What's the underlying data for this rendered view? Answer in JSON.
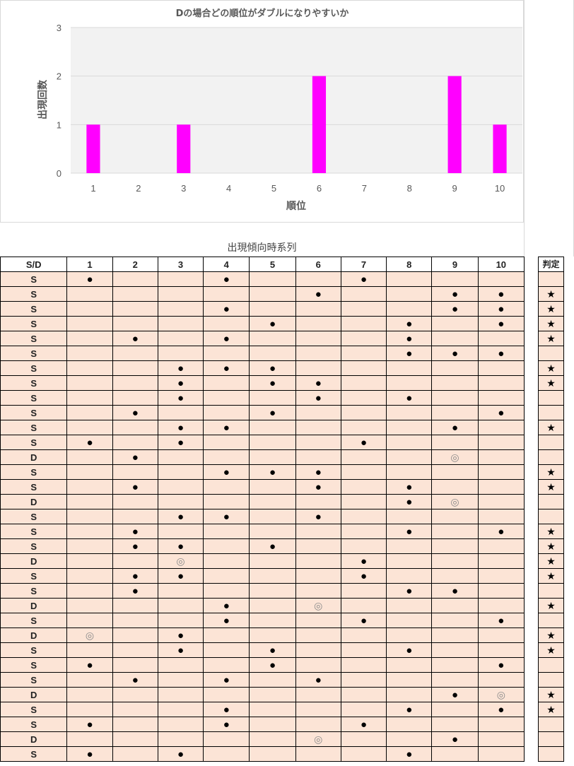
{
  "chart_data": {
    "type": "bar",
    "title": "Dの場合どの順位がダブルになりやすいか",
    "xlabel": "順位",
    "ylabel": "出現回数",
    "categories": [
      "1",
      "2",
      "3",
      "4",
      "5",
      "6",
      "7",
      "8",
      "9",
      "10"
    ],
    "values": [
      1,
      0,
      1,
      0,
      0,
      2,
      0,
      0,
      2,
      1
    ],
    "ylim": [
      0,
      3
    ],
    "yticks": [
      "0",
      "1",
      "2",
      "3"
    ],
    "bar_color": "#ff00ff",
    "plot_bg": "#f2f2f2",
    "grid": true,
    "legend": "none"
  },
  "table": {
    "title": "出現傾向時系列",
    "headers": [
      "S/D",
      "1",
      "2",
      "3",
      "4",
      "5",
      "6",
      "7",
      "8",
      "9",
      "10"
    ],
    "judge_header": "判定",
    "row_color": "#fce4d6",
    "dot_symbol": "●",
    "double_symbol": "◎",
    "star_symbol": "★",
    "rows": [
      {
        "sd": "S",
        "marks": {
          "1": "●",
          "4": "●",
          "7": "●"
        },
        "judge": ""
      },
      {
        "sd": "S",
        "marks": {
          "6": "●",
          "9": "●",
          "10": "●"
        },
        "judge": "★"
      },
      {
        "sd": "S",
        "marks": {
          "4": "●",
          "9": "●",
          "10": "●"
        },
        "judge": "★"
      },
      {
        "sd": "S",
        "marks": {
          "5": "●",
          "8": "●",
          "10": "●"
        },
        "judge": "★"
      },
      {
        "sd": "S",
        "marks": {
          "2": "●",
          "4": "●",
          "8": "●"
        },
        "judge": "★"
      },
      {
        "sd": "S",
        "marks": {
          "8": "●",
          "9": "●",
          "10": "●"
        },
        "judge": ""
      },
      {
        "sd": "S",
        "marks": {
          "3": "●",
          "4": "●",
          "5": "●"
        },
        "judge": "★"
      },
      {
        "sd": "S",
        "marks": {
          "3": "●",
          "5": "●",
          "6": "●"
        },
        "judge": "★"
      },
      {
        "sd": "S",
        "marks": {
          "3": "●",
          "6": "●",
          "8": "●"
        },
        "judge": ""
      },
      {
        "sd": "S",
        "marks": {
          "2": "●",
          "5": "●",
          "10": "●"
        },
        "judge": ""
      },
      {
        "sd": "S",
        "marks": {
          "3": "●",
          "4": "●",
          "9": "●"
        },
        "judge": "★"
      },
      {
        "sd": "S",
        "marks": {
          "1": "●",
          "3": "●",
          "7": "●"
        },
        "judge": ""
      },
      {
        "sd": "D",
        "marks": {
          "2": "●",
          "9": "◎"
        },
        "judge": ""
      },
      {
        "sd": "S",
        "marks": {
          "4": "●",
          "5": "●",
          "6": "●"
        },
        "judge": "★"
      },
      {
        "sd": "S",
        "marks": {
          "2": "●",
          "6": "●",
          "8": "●"
        },
        "judge": "★"
      },
      {
        "sd": "D",
        "marks": {
          "8": "●",
          "9": "◎"
        },
        "judge": ""
      },
      {
        "sd": "S",
        "marks": {
          "3": "●",
          "4": "●",
          "6": "●"
        },
        "judge": ""
      },
      {
        "sd": "S",
        "marks": {
          "2": "●",
          "8": "●",
          "10": "●"
        },
        "judge": "★"
      },
      {
        "sd": "S",
        "marks": {
          "2": "●",
          "3": "●",
          "5": "●"
        },
        "judge": "★"
      },
      {
        "sd": "D",
        "marks": {
          "3": "◎",
          "7": "●"
        },
        "judge": "★"
      },
      {
        "sd": "S",
        "marks": {
          "2": "●",
          "3": "●",
          "7": "●"
        },
        "judge": "★"
      },
      {
        "sd": "S",
        "marks": {
          "2": "●",
          "8": "●",
          "9": "●"
        },
        "judge": ""
      },
      {
        "sd": "D",
        "marks": {
          "4": "●",
          "6": "◎"
        },
        "judge": "★"
      },
      {
        "sd": "S",
        "marks": {
          "4": "●",
          "7": "●",
          "10": "●"
        },
        "judge": ""
      },
      {
        "sd": "D",
        "marks": {
          "1": "◎",
          "3": "●"
        },
        "judge": "★"
      },
      {
        "sd": "S",
        "marks": {
          "3": "●",
          "5": "●",
          "8": "●"
        },
        "judge": "★"
      },
      {
        "sd": "S",
        "marks": {
          "1": "●",
          "5": "●",
          "10": "●"
        },
        "judge": ""
      },
      {
        "sd": "S",
        "marks": {
          "2": "●",
          "4": "●",
          "6": "●"
        },
        "judge": ""
      },
      {
        "sd": "D",
        "marks": {
          "9": "●",
          "10": "◎"
        },
        "judge": "★"
      },
      {
        "sd": "S",
        "marks": {
          "4": "●",
          "8": "●",
          "10": "●"
        },
        "judge": "★"
      },
      {
        "sd": "S",
        "marks": {
          "1": "●",
          "4": "●",
          "7": "●"
        },
        "judge": ""
      },
      {
        "sd": "D",
        "marks": {
          "6": "◎",
          "9": "●"
        },
        "judge": ""
      },
      {
        "sd": "S",
        "marks": {
          "1": "●",
          "3": "●",
          "8": "●"
        },
        "judge": ""
      }
    ]
  }
}
